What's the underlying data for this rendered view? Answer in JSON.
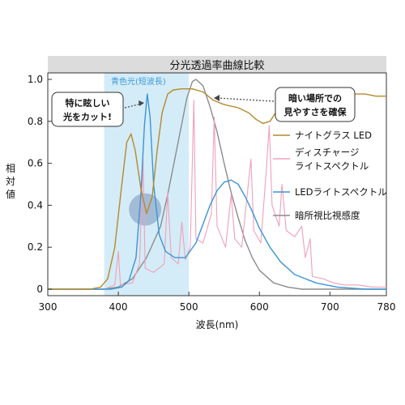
{
  "chart_data": {
    "type": "line",
    "title": "分光透過率曲線比較",
    "xlabel": "波長(nm)",
    "ylabel": "相対値",
    "xlim": [
      300,
      780
    ],
    "ylim": [
      0,
      1.0
    ],
    "x_ticks": [
      "300",
      "400",
      "500",
      "600",
      "700",
      "780"
    ],
    "y_ticks": [
      "0",
      "0.2",
      "0.4",
      "0.6",
      "0.8",
      "1.0"
    ],
    "grid": false,
    "legend_position": "right",
    "colors": {
      "title_bar": "#dcdcdc",
      "shade": "#d4ecf8",
      "blue_label": "#3a9ad9",
      "highlight": "#8fa8c8"
    },
    "shaded_region": {
      "label": "青色光(短波長)",
      "x_range": [
        380,
        500
      ]
    },
    "annotations": {
      "left_box": [
        "特に眩しい",
        "光をカット!"
      ],
      "right_box": [
        "暗い場所での",
        "見やすさを確保"
      ]
    },
    "series": [
      {
        "name": "ナイトグラス LED",
        "color": "#b5892e",
        "points": [
          [
            300,
            0
          ],
          [
            360,
            0
          ],
          [
            375,
            0.01
          ],
          [
            385,
            0.05
          ],
          [
            395,
            0.2
          ],
          [
            405,
            0.5
          ],
          [
            412,
            0.7
          ],
          [
            418,
            0.74
          ],
          [
            424,
            0.66
          ],
          [
            432,
            0.48
          ],
          [
            440,
            0.36
          ],
          [
            448,
            0.44
          ],
          [
            455,
            0.66
          ],
          [
            462,
            0.84
          ],
          [
            470,
            0.93
          ],
          [
            478,
            0.95
          ],
          [
            490,
            0.955
          ],
          [
            505,
            0.955
          ],
          [
            520,
            0.94
          ],
          [
            535,
            0.9
          ],
          [
            550,
            0.88
          ],
          [
            570,
            0.865
          ],
          [
            585,
            0.84
          ],
          [
            595,
            0.81
          ],
          [
            605,
            0.79
          ],
          [
            615,
            0.8
          ],
          [
            625,
            0.85
          ],
          [
            635,
            0.9
          ],
          [
            650,
            0.945
          ],
          [
            665,
            0.96
          ],
          [
            690,
            0.955
          ],
          [
            710,
            0.94
          ],
          [
            730,
            0.93
          ],
          [
            750,
            0.93
          ],
          [
            765,
            0.92
          ],
          [
            780,
            0.92
          ]
        ]
      },
      {
        "name": "ディスチャージ ライトスペクトル",
        "color": "#f0a0b8",
        "points": [
          [
            300,
            0
          ],
          [
            380,
            0
          ],
          [
            395,
            0.02
          ],
          [
            400,
            0.18
          ],
          [
            403,
            0.02
          ],
          [
            420,
            0.03
          ],
          [
            430,
            0.12
          ],
          [
            435,
            0.62
          ],
          [
            438,
            0.1
          ],
          [
            450,
            0.08
          ],
          [
            465,
            0.12
          ],
          [
            470,
            0.46
          ],
          [
            475,
            0.15
          ],
          [
            485,
            0.12
          ],
          [
            490,
            0.32
          ],
          [
            495,
            0.14
          ],
          [
            502,
            0.2
          ],
          [
            507,
            0.9
          ],
          [
            510,
            0.24
          ],
          [
            520,
            0.22
          ],
          [
            532,
            0.36
          ],
          [
            536,
            0.82
          ],
          [
            540,
            0.3
          ],
          [
            552,
            0.2
          ],
          [
            560,
            0.45
          ],
          [
            565,
            0.24
          ],
          [
            575,
            0.2
          ],
          [
            588,
            0.62
          ],
          [
            592,
            0.28
          ],
          [
            602,
            0.22
          ],
          [
            610,
            0.58
          ],
          [
            614,
            0.78
          ],
          [
            618,
            0.4
          ],
          [
            628,
            0.3
          ],
          [
            632,
            0.5
          ],
          [
            638,
            0.28
          ],
          [
            650,
            0.25
          ],
          [
            660,
            0.3
          ],
          [
            665,
            0.15
          ],
          [
            672,
            0.24
          ],
          [
            675,
            0.06
          ],
          [
            690,
            0.05
          ],
          [
            705,
            0.03
          ],
          [
            720,
            0.02
          ],
          [
            740,
            0.02
          ],
          [
            760,
            0.01
          ],
          [
            780,
            0.01
          ]
        ]
      },
      {
        "name": "LEDライトスペクトル",
        "color": "#3a95d8",
        "points": [
          [
            300,
            0
          ],
          [
            390,
            0
          ],
          [
            405,
            0.01
          ],
          [
            415,
            0.04
          ],
          [
            425,
            0.15
          ],
          [
            432,
            0.45
          ],
          [
            437,
            0.78
          ],
          [
            441,
            0.93
          ],
          [
            445,
            0.82
          ],
          [
            450,
            0.5
          ],
          [
            458,
            0.26
          ],
          [
            467,
            0.18
          ],
          [
            480,
            0.15
          ],
          [
            495,
            0.15
          ],
          [
            510,
            0.22
          ],
          [
            520,
            0.31
          ],
          [
            530,
            0.4
          ],
          [
            540,
            0.47
          ],
          [
            550,
            0.51
          ],
          [
            560,
            0.52
          ],
          [
            570,
            0.5
          ],
          [
            580,
            0.44
          ],
          [
            590,
            0.37
          ],
          [
            600,
            0.29
          ],
          [
            615,
            0.2
          ],
          [
            630,
            0.13
          ],
          [
            650,
            0.07
          ],
          [
            680,
            0.03
          ],
          [
            710,
            0.01
          ],
          [
            750,
            0
          ],
          [
            780,
            0
          ]
        ]
      },
      {
        "name": "暗所視比視感度",
        "color": "#8c8c8c",
        "points": [
          [
            300,
            0
          ],
          [
            380,
            0
          ],
          [
            400,
            0.01
          ],
          [
            420,
            0.05
          ],
          [
            440,
            0.15
          ],
          [
            460,
            0.3
          ],
          [
            470,
            0.45
          ],
          [
            480,
            0.62
          ],
          [
            490,
            0.79
          ],
          [
            497,
            0.91
          ],
          [
            505,
            0.99
          ],
          [
            510,
            1.0
          ],
          [
            520,
            0.97
          ],
          [
            530,
            0.87
          ],
          [
            540,
            0.75
          ],
          [
            550,
            0.6
          ],
          [
            560,
            0.46
          ],
          [
            570,
            0.34
          ],
          [
            580,
            0.23
          ],
          [
            590,
            0.15
          ],
          [
            600,
            0.09
          ],
          [
            620,
            0.03
          ],
          [
            640,
            0.01
          ],
          [
            660,
            0
          ],
          [
            780,
            0
          ]
        ]
      }
    ]
  }
}
